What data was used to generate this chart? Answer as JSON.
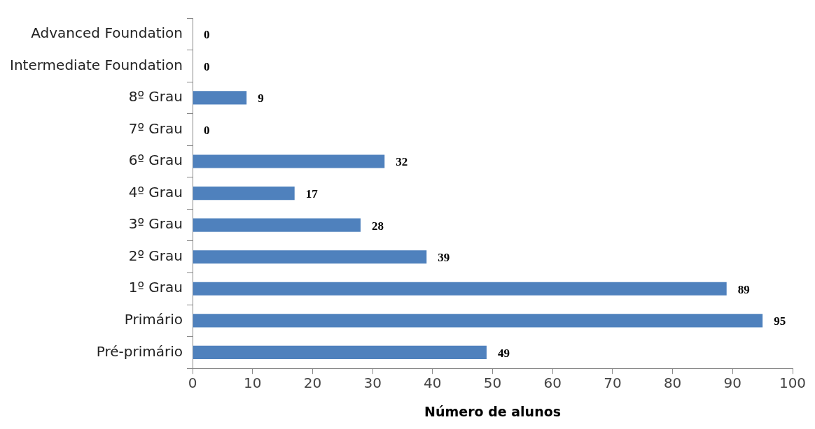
{
  "chart_data": {
    "type": "bar",
    "orientation": "horizontal",
    "xlabel": "Número de alunos",
    "categories": [
      "Advanced Foundation",
      "Intermediate Foundation",
      "8º Grau",
      "7º Grau",
      "6º Grau",
      "4º Grau",
      "3º Grau",
      "2º Grau",
      "1º Grau",
      "Primário",
      "Pré-primário"
    ],
    "values": [
      0,
      0,
      9,
      0,
      32,
      17,
      28,
      39,
      89,
      95,
      49
    ],
    "color": "#4f81bd",
    "xlim": [
      0,
      100
    ],
    "xticks": [
      0,
      10,
      20,
      30,
      40,
      50,
      60,
      70,
      80,
      90,
      100
    ],
    "grid": false,
    "legend": false,
    "data_labels": true
  }
}
